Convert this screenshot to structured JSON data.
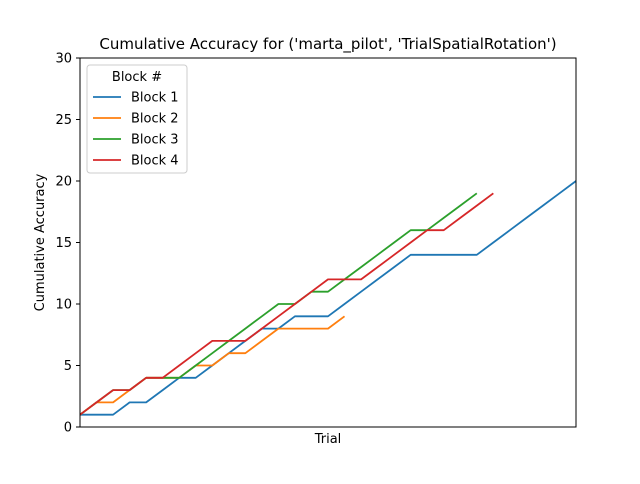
{
  "chart_data": {
    "type": "line",
    "title": "Cumulative Accuracy for ('marta_pilot', 'TrialSpatialRotation')",
    "xlabel": "Trial",
    "ylabel": "Cumulative Accuracy",
    "xlim": [
      0,
      30
    ],
    "ylim": [
      0,
      30
    ],
    "yticks": [
      0,
      5,
      10,
      15,
      20,
      25,
      30
    ],
    "x_tick_labels_shown": false,
    "grid": false,
    "legend": {
      "title": "Block #",
      "placement": "top-left"
    },
    "series": [
      {
        "name": "Block 1",
        "color": "#1f77b4",
        "x": [
          0,
          1,
          2,
          3,
          4,
          5,
          6,
          7,
          8,
          9,
          10,
          11,
          12,
          13,
          14,
          15,
          16,
          17,
          18,
          19,
          20,
          21,
          22,
          23,
          24,
          25,
          26,
          27,
          28,
          29,
          30
        ],
        "y": [
          1,
          1,
          1,
          2,
          2,
          3,
          4,
          4,
          5,
          6,
          7,
          8,
          8,
          9,
          9,
          9,
          10,
          11,
          12,
          13,
          14,
          14,
          14,
          14,
          14,
          15,
          16,
          17,
          18,
          19,
          20
        ]
      },
      {
        "name": "Block 2",
        "color": "#ff7f0e",
        "x": [
          0,
          1,
          2,
          3,
          4,
          5,
          6,
          7,
          8,
          9,
          10,
          11,
          12,
          13,
          14,
          15,
          16
        ],
        "y": [
          1,
          2,
          2,
          3,
          4,
          4,
          4,
          5,
          5,
          6,
          6,
          7,
          8,
          8,
          8,
          8,
          9
        ]
      },
      {
        "name": "Block 3",
        "color": "#2ca02c",
        "x": [
          0,
          1,
          2,
          3,
          4,
          5,
          6,
          7,
          8,
          9,
          10,
          11,
          12,
          13,
          14,
          15,
          16,
          17,
          18,
          19,
          20,
          21,
          22,
          23,
          24
        ],
        "y": [
          1,
          2,
          3,
          3,
          4,
          4,
          4,
          5,
          6,
          7,
          8,
          9,
          10,
          10,
          11,
          11,
          12,
          13,
          14,
          15,
          16,
          16,
          17,
          18,
          19
        ]
      },
      {
        "name": "Block 4",
        "color": "#d62728",
        "x": [
          0,
          1,
          2,
          3,
          4,
          5,
          6,
          7,
          8,
          9,
          10,
          11,
          12,
          13,
          14,
          15,
          16,
          17,
          18,
          19,
          20,
          21,
          22,
          23,
          24,
          25
        ],
        "y": [
          1,
          2,
          3,
          3,
          4,
          4,
          5,
          6,
          7,
          7,
          7,
          8,
          9,
          10,
          11,
          12,
          12,
          12,
          13,
          14,
          15,
          16,
          16,
          17,
          18,
          19
        ]
      }
    ]
  }
}
